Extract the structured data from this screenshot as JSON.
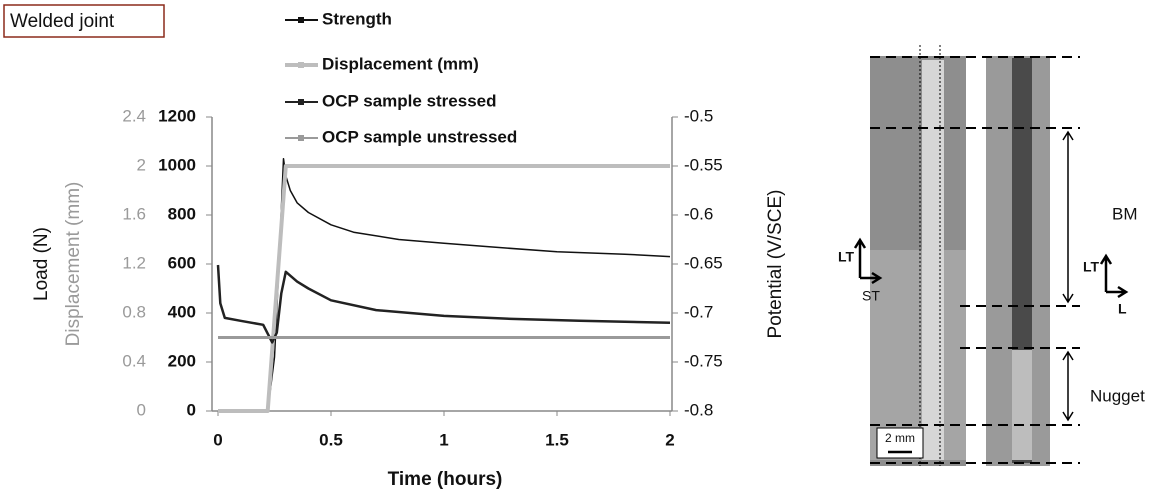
{
  "panel_label": "Welded joint",
  "chart_data": {
    "type": "line",
    "xlabel": "Time (hours)",
    "ylabel": "Load (N)",
    "y3label": "Displacement (mm)",
    "y2label": "Potential (V/SCE)",
    "xlim": [
      0,
      2
    ],
    "xticks": [
      0,
      0.5,
      1,
      1.5,
      2
    ],
    "ylim": [
      0,
      1200
    ],
    "yticks": [
      0,
      200,
      400,
      600,
      800,
      1000,
      1200
    ],
    "y3lim": [
      0,
      2.4
    ],
    "y3ticks": [
      0,
      0.4,
      0.8,
      1.2,
      1.6,
      2,
      2.4
    ],
    "y2lim": [
      -0.8,
      -0.5
    ],
    "y2ticks": [
      -0.8,
      -0.75,
      -0.7,
      -0.65,
      -0.6,
      -0.55,
      -0.5
    ],
    "series": [
      {
        "name": "Strength",
        "color": "#111111",
        "axis": "y",
        "x": [
          0,
          0.2,
          0.22,
          0.25,
          0.27,
          0.29,
          0.3,
          0.32,
          0.35,
          0.4,
          0.5,
          0.6,
          0.8,
          1,
          1.2,
          1.5,
          1.8,
          2
        ],
        "values": [
          0,
          0,
          0,
          220,
          600,
          1030,
          960,
          900,
          850,
          810,
          760,
          730,
          700,
          685,
          670,
          650,
          640,
          630
        ]
      },
      {
        "name": "Displacement (mm)",
        "color": "#bdbdbd",
        "axis": "y3",
        "x": [
          0,
          0.22,
          0.3,
          2
        ],
        "values": [
          0,
          0,
          2,
          2
        ]
      },
      {
        "name": "OCP sample stressed",
        "color": "#222222",
        "axis": "y2",
        "x": [
          0,
          0.01,
          0.03,
          0.1,
          0.2,
          0.24,
          0.26,
          0.28,
          0.3,
          0.35,
          0.4,
          0.5,
          0.7,
          1,
          1.3,
          1.6,
          2
        ],
        "values": [
          -0.651,
          -0.69,
          -0.705,
          -0.708,
          -0.712,
          -0.73,
          -0.72,
          -0.68,
          -0.658,
          -0.668,
          -0.675,
          -0.687,
          -0.697,
          -0.703,
          -0.706,
          -0.708,
          -0.71
        ]
      },
      {
        "name": "OCP sample unstressed",
        "color": "#9a9a9a",
        "axis": "y2",
        "x": [
          0,
          0.5,
          1,
          1.5,
          2
        ],
        "values": [
          -0.725,
          -0.725,
          -0.725,
          -0.725,
          -0.725
        ]
      }
    ]
  },
  "micrograph": {
    "orientation_left": [
      "LT",
      "ST"
    ],
    "orientation_right": [
      "LT",
      "L"
    ],
    "zones": [
      "BM",
      "Nugget"
    ],
    "scale_bar": "2 mm"
  }
}
